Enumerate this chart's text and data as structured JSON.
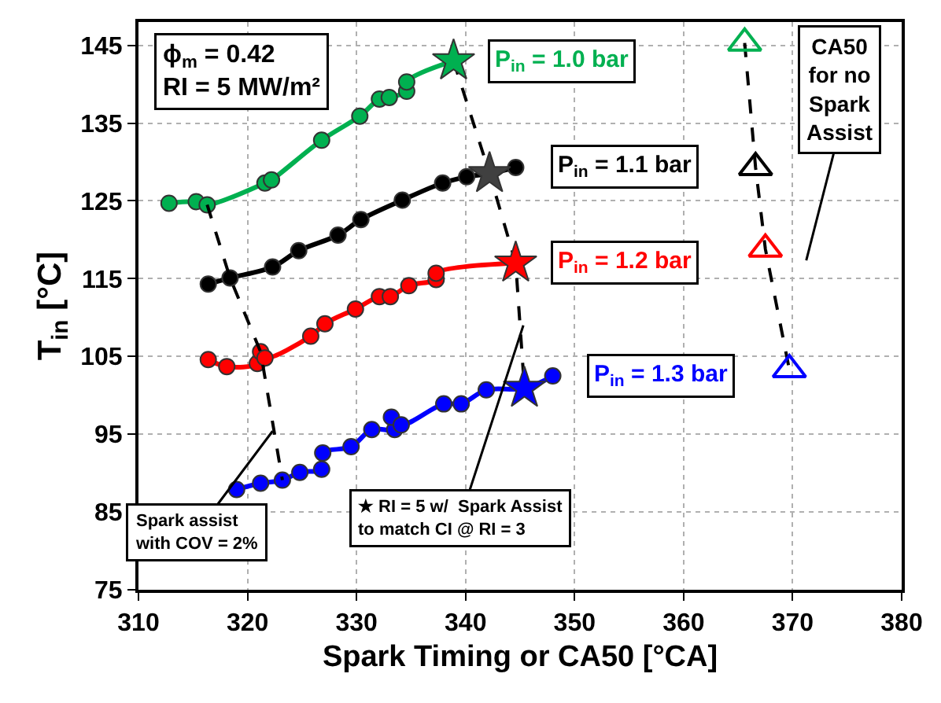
{
  "chart_data": {
    "type": "line",
    "xlabel": "Spark Timing or CA50 [°CA]",
    "ylabel": "T$_{in}$ [°C]",
    "xlim": [
      310,
      380
    ],
    "xticks": [
      310,
      320,
      330,
      340,
      350,
      360,
      370,
      380
    ],
    "ylim": [
      75,
      148
    ],
    "yticks": [
      75,
      85,
      95,
      105,
      115,
      125,
      135,
      145
    ],
    "grid": true,
    "marker": "circle",
    "line_style": "solid",
    "series": [
      {
        "name": "P$_{in}$ = 1.0 bar",
        "color": "#00b050",
        "x": [
          312.8,
          315.3,
          316.3,
          321.6,
          322.2,
          326.8,
          330.3,
          332.1,
          333.0,
          334.6,
          334.6,
          338.9
        ],
        "values": [
          124.7,
          124.9,
          124.5,
          127.3,
          127.7,
          132.8,
          135.9,
          138.1,
          138.3,
          139.1,
          140.3,
          143.0
        ]
      },
      {
        "name": "P$_{in}$ = 1.1 bar",
        "color": "#000000",
        "x": [
          316.4,
          318.4,
          322.3,
          324.7,
          328.3,
          330.4,
          334.2,
          337.9,
          340.1,
          342.2,
          344.6
        ],
        "values": [
          114.3,
          115.1,
          116.5,
          118.6,
          120.6,
          122.6,
          125.1,
          127.3,
          128.1,
          128.5,
          129.3
        ]
      },
      {
        "name": "P$_{in}$ = 1.2 bar",
        "color": "#ff0000",
        "x": [
          316.4,
          318.1,
          320.9,
          321.2,
          321.6,
          325.8,
          327.1,
          329.9,
          332.1,
          333.1,
          334.8,
          337.3,
          337.3,
          344.6
        ],
        "values": [
          104.6,
          103.7,
          104.1,
          105.6,
          104.8,
          107.6,
          109.2,
          111.1,
          112.7,
          112.7,
          114.1,
          114.9,
          115.7,
          117.0
        ]
      },
      {
        "name": "P$_{in}$ = 1.3 bar",
        "color": "#0000ff",
        "x": [
          319.0,
          321.2,
          323.2,
          324.8,
          326.8,
          326.9,
          329.5,
          331.4,
          333.5,
          333.2,
          334.1,
          338.0,
          339.6,
          341.9,
          345.4,
          348.0
        ],
        "values": [
          87.9,
          88.7,
          89.1,
          90.1,
          90.5,
          92.6,
          93.4,
          95.6,
          95.6,
          97.2,
          96.2,
          98.9,
          98.9,
          100.7,
          100.9,
          102.5
        ]
      },
      {
        "color": "#000000",
        "line_style": "dashed",
        "marker": "none",
        "x": [
          316.3,
          318.4,
          321.2,
          323.2
        ],
        "values": [
          124.5,
          115.1,
          105.6,
          89.1
        ]
      },
      {
        "color": "#000000",
        "line_style": "dashed",
        "marker": "none",
        "x": [
          338.9,
          342.2,
          344.6,
          345.4
        ],
        "values": [
          143.0,
          128.5,
          117.0,
          100.9
        ]
      },
      {
        "type": "scatter",
        "color": "#404040",
        "marker": "star",
        "colors": [
          "#00b050",
          "#404040",
          "#ff0000",
          "#0000ff"
        ],
        "x": [
          338.9,
          342.2,
          344.6,
          345.4
        ],
        "values": [
          143.0,
          128.5,
          117.0,
          100.9
        ]
      },
      {
        "color": "#000000",
        "line_style": "dashed",
        "marker": "triangle",
        "colors": [
          "#00b050",
          "#000000",
          "#ff0000",
          "#0000ff"
        ],
        "x": [
          365.6,
          366.6,
          367.5,
          369.7
        ],
        "values": [
          145.3,
          129.3,
          118.8,
          103.3
        ]
      }
    ],
    "annotations": [
      "ϕ$_{m}$ = 0.42\nRI = 5 MW/m²",
      {
        "text": "Spark assist\nwith COV = 2%",
        "x": 322.3,
        "y": 95.4
      },
      {
        "text": "★ RI = 5 w/  Spark Assist\nto match CI @ RI = 3",
        "x": 345.3,
        "y": 109.0
      },
      "CA50\nfor no\nSpark\nAssist"
    ]
  }
}
